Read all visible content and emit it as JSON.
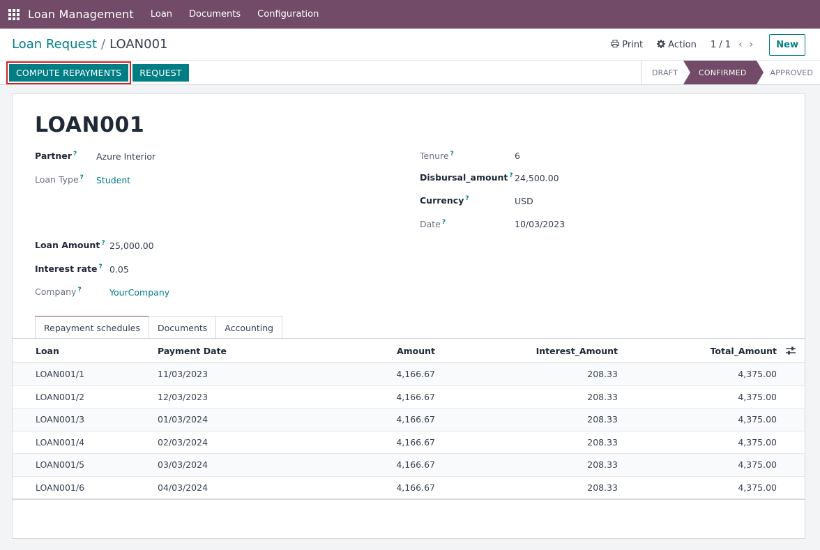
{
  "navbar": {
    "brand": "Loan Management",
    "menu": [
      "Loan",
      "Documents",
      "Configuration"
    ]
  },
  "control_panel": {
    "breadcrumb_parent": "Loan Request",
    "breadcrumb_sep": "/",
    "breadcrumb_current": "LOAN001",
    "print_label": "Print",
    "action_label": "Action",
    "pager": "1 / 1",
    "pager_prev": "‹",
    "pager_next": "›",
    "new_label": "New"
  },
  "statusbar": {
    "compute_label": "COMPUTE REPAYMENTS",
    "request_label": "REQUEST",
    "stages": [
      "DRAFT",
      "CONFIRMED",
      "APPROVED"
    ],
    "current_stage": "CONFIRMED"
  },
  "record": {
    "title": "LOAN001",
    "help_marker": "?",
    "partner_label": "Partner",
    "partner": "Azure Interior",
    "loan_type_label": "Loan Type",
    "loan_type": "Student",
    "loan_amount_label": "Loan Amount",
    "loan_amount": "25,000.00",
    "interest_rate_label": "Interest rate",
    "interest_rate": "0.05",
    "company_label": "Company",
    "company": "YourCompany",
    "tenure_label": "Tenure",
    "tenure": "6",
    "disbursal_label": "Disbursal_amount",
    "disbursal": "24,500.00",
    "currency_label": "Currency",
    "currency": "USD",
    "date_label": "Date",
    "date": "10/03/2023"
  },
  "tabs": [
    "Repayment schedules",
    "Documents",
    "Accounting"
  ],
  "table": {
    "headers": [
      "Loan",
      "Payment Date",
      "Amount",
      "Interest_Amount",
      "Total_Amount"
    ],
    "rows": [
      [
        "LOAN001/1",
        "11/03/2023",
        "4,166.67",
        "208.33",
        "4,375.00"
      ],
      [
        "LOAN001/2",
        "12/03/2023",
        "4,166.67",
        "208.33",
        "4,375.00"
      ],
      [
        "LOAN001/3",
        "01/03/2024",
        "4,166.67",
        "208.33",
        "4,375.00"
      ],
      [
        "LOAN001/4",
        "02/03/2024",
        "4,166.67",
        "208.33",
        "4,375.00"
      ],
      [
        "LOAN001/5",
        "03/03/2024",
        "4,166.67",
        "208.33",
        "4,375.00"
      ],
      [
        "LOAN001/6",
        "04/03/2024",
        "4,166.67",
        "208.33",
        "4,375.00"
      ]
    ]
  },
  "colors": {
    "brand": "#714b67",
    "accent": "#017e84",
    "highlight": "#d21f1f"
  }
}
